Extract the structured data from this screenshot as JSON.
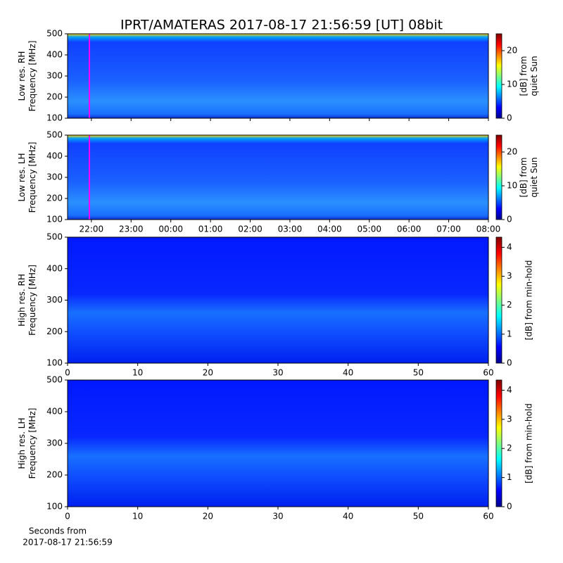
{
  "title": "IPRT/AMATERAS 2017-08-17 21:56:59 [UT]   08bit",
  "xlabel": [
    "Seconds from",
    "2017-08-17 21:56:59"
  ],
  "chart_data": [
    {
      "type": "spectrogram",
      "ylabel": [
        "Low res. RH",
        "Frequency [MHz]"
      ],
      "ylim": [
        100,
        500
      ],
      "yticks": [
        100,
        200,
        300,
        400,
        500
      ],
      "xlim": [
        21.4,
        32
      ],
      "marker_x": 21.95,
      "marker_color": "#ff00ff",
      "clim": [
        0,
        25
      ],
      "cticks": [
        0,
        10,
        20
      ],
      "clabel": [
        "[dB] from",
        "quiet Sun"
      ]
    },
    {
      "type": "spectrogram",
      "ylabel": [
        "Low res. LH",
        "Frequency [MHz]"
      ],
      "ylim": [
        100,
        500
      ],
      "yticks": [
        100,
        200,
        300,
        400,
        500
      ],
      "xlim": [
        21.4,
        32
      ],
      "marker_x": 21.95,
      "marker_color": "#ff00ff",
      "xticks": [
        {
          "value": 22,
          "label": "22:00"
        },
        {
          "value": 23,
          "label": "23:00"
        },
        {
          "value": 24,
          "label": "00:00"
        },
        {
          "value": 25,
          "label": "01:00"
        },
        {
          "value": 26,
          "label": "02:00"
        },
        {
          "value": 27,
          "label": "03:00"
        },
        {
          "value": 28,
          "label": "04:00"
        },
        {
          "value": 29,
          "label": "05:00"
        },
        {
          "value": 30,
          "label": "06:00"
        },
        {
          "value": 31,
          "label": "07:00"
        },
        {
          "value": 32,
          "label": "08:00"
        }
      ],
      "clim": [
        0,
        25
      ],
      "cticks": [
        0,
        10,
        20
      ],
      "clabel": [
        "[dB] from",
        "quiet Sun"
      ]
    },
    {
      "type": "spectrogram",
      "ylabel": [
        "High res. RH",
        "Frequency [MHz]"
      ],
      "ylim": [
        100,
        500
      ],
      "yticks": [
        100,
        200,
        300,
        400,
        500
      ],
      "xlim": [
        0,
        60
      ],
      "xticks": [
        0,
        10,
        20,
        30,
        40,
        50,
        60
      ],
      "clim": [
        0,
        4.35
      ],
      "cticks": [
        0,
        1,
        2,
        3,
        4
      ],
      "clabel": [
        "[dB] from min-hold"
      ]
    },
    {
      "type": "spectrogram",
      "ylabel": [
        "High res. LH",
        "Frequency [MHz]"
      ],
      "ylim": [
        100,
        500
      ],
      "yticks": [
        100,
        200,
        300,
        400,
        500
      ],
      "xlim": [
        0,
        60
      ],
      "xticks": [
        0,
        10,
        20,
        30,
        40,
        50,
        60
      ],
      "clim": [
        0,
        4.35
      ],
      "cticks": [
        0,
        1,
        2,
        3,
        4
      ],
      "clabel": [
        "[dB] from min-hold"
      ]
    }
  ]
}
